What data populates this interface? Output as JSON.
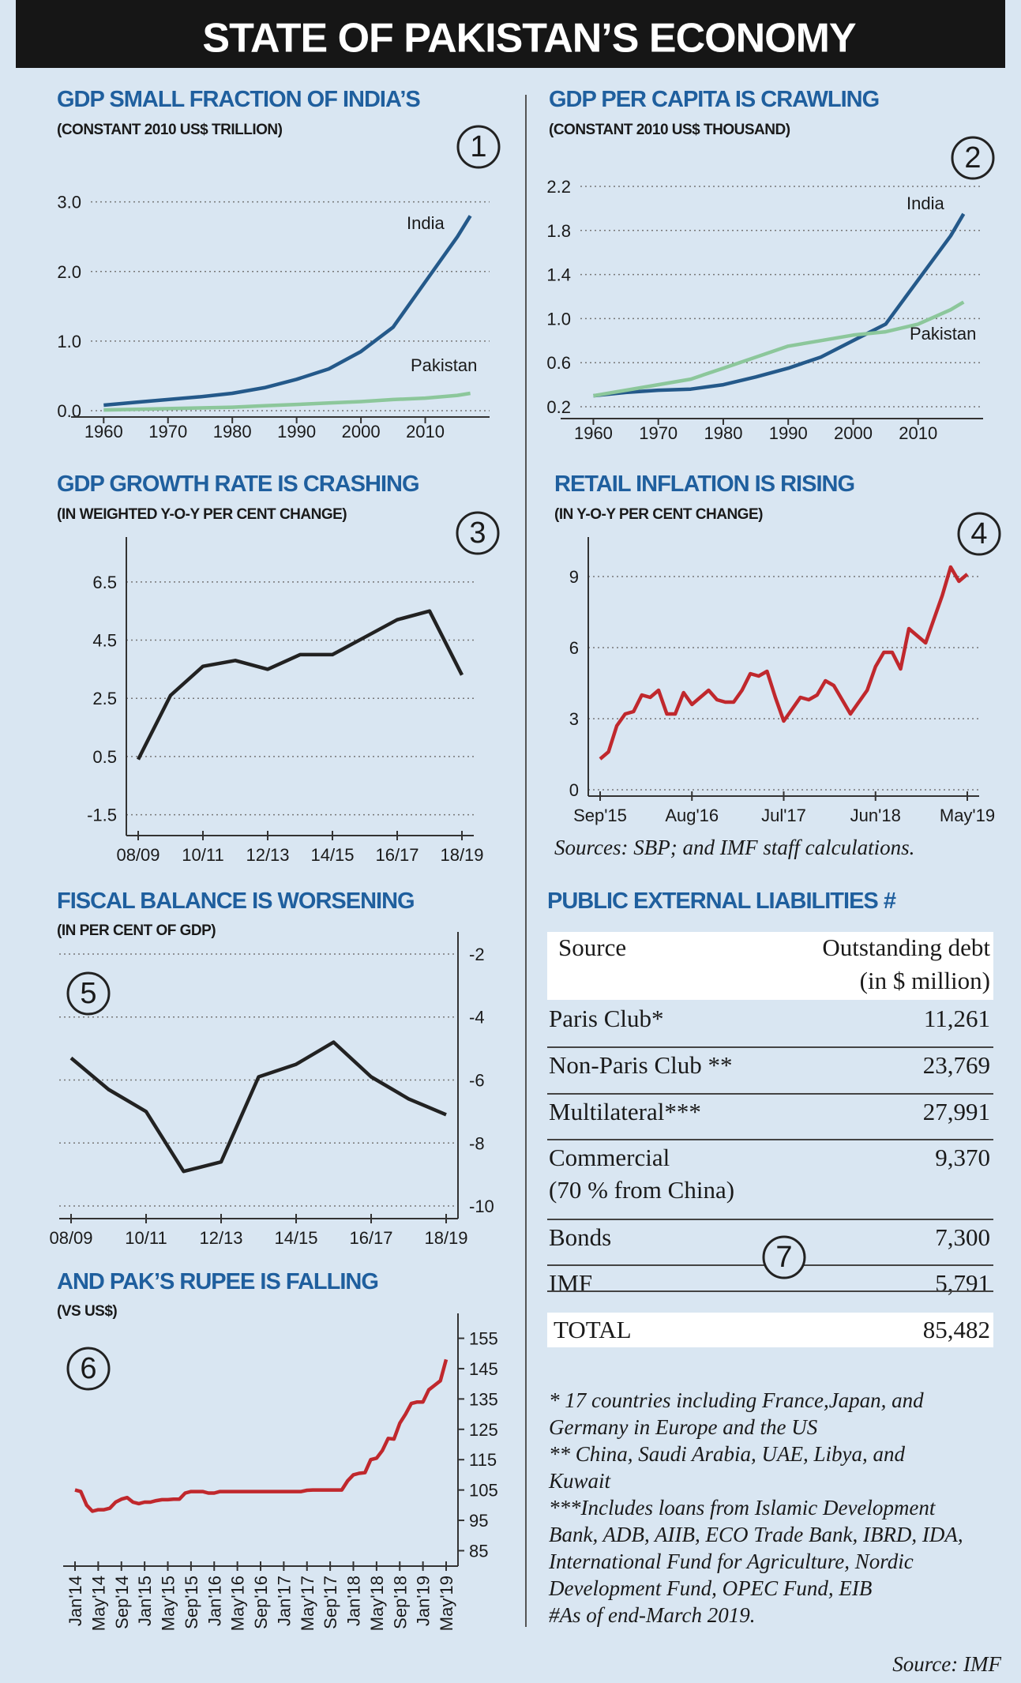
{
  "title": "STATE OF PAKISTAN’S ECONOMY",
  "chart_data": [
    {
      "type": "line",
      "title": "GDP SMALL FRACTION OF INDIA’S",
      "subtitle": "(CONSTANT 2010 US$ TRILLION)",
      "badge": "1",
      "x": [
        1960,
        1965,
        1970,
        1975,
        1980,
        1985,
        1990,
        1995,
        2000,
        2005,
        2010,
        2015,
        2017
      ],
      "series": [
        {
          "name": "India",
          "color": "#24598a",
          "values": [
            0.08,
            0.12,
            0.16,
            0.2,
            0.25,
            0.33,
            0.45,
            0.6,
            0.85,
            1.2,
            1.85,
            2.5,
            2.8
          ]
        },
        {
          "name": "Pakistan",
          "color": "#8cc79b",
          "values": [
            0.01,
            0.02,
            0.03,
            0.04,
            0.05,
            0.07,
            0.09,
            0.11,
            0.13,
            0.16,
            0.18,
            0.22,
            0.25
          ]
        }
      ],
      "xlim": [
        1958,
        2020
      ],
      "xticks": [
        1960,
        1970,
        1980,
        1990,
        2000,
        2010
      ],
      "ylim": [
        0,
        3.2
      ],
      "yticks": [
        {
          "value": 0,
          "label": "0.0"
        },
        {
          "value": 1,
          "label": "1.0"
        },
        {
          "value": 2,
          "label": "2.0"
        },
        {
          "value": 3,
          "label": "3.0"
        }
      ],
      "grid": true,
      "y_axis_side": "left"
    },
    {
      "type": "line",
      "title": "GDP PER CAPITA IS CRAWLING",
      "subtitle": "(CONSTANT 2010 US$ THOUSAND)",
      "badge": "2",
      "x": [
        1960,
        1965,
        1970,
        1975,
        1980,
        1985,
        1990,
        1995,
        2000,
        2005,
        2010,
        2015,
        2017
      ],
      "series": [
        {
          "name": "India",
          "color": "#24598a",
          "values": [
            0.3,
            0.33,
            0.35,
            0.36,
            0.4,
            0.47,
            0.55,
            0.65,
            0.8,
            0.95,
            1.35,
            1.75,
            1.95
          ]
        },
        {
          "name": "Pakistan",
          "color": "#8cc79b",
          "values": [
            0.3,
            0.35,
            0.4,
            0.45,
            0.55,
            0.65,
            0.75,
            0.8,
            0.85,
            0.88,
            0.95,
            1.08,
            1.15
          ]
        }
      ],
      "xlim": [
        1958,
        2020
      ],
      "xticks": [
        1960,
        1970,
        1980,
        1990,
        2000,
        2010
      ],
      "ylim": [
        0.15,
        2.3
      ],
      "yticks": [
        0.2,
        0.6,
        {
          "value": 1,
          "label": "1.0"
        },
        1.4,
        1.8,
        2.2
      ],
      "grid": true,
      "y_axis_side": "left"
    },
    {
      "type": "line",
      "title": "GDP GROWTH RATE IS CRASHING",
      "subtitle": "(IN WEIGHTED Y-O-Y PER CENT CHANGE)",
      "badge": "3",
      "categories": [
        "08/09",
        null,
        "10/11",
        null,
        "12/13",
        null,
        "14/15",
        null,
        "16/17",
        null,
        "18/19"
      ],
      "series": [
        {
          "color": "#222222",
          "values": [
            0.4,
            2.6,
            3.6,
            3.8,
            3.5,
            4.0,
            4.0,
            4.6,
            5.2,
            5.5,
            3.3
          ]
        }
      ],
      "ylim": [
        -2,
        7.5
      ],
      "yticks": [
        -1.5,
        0.5,
        2.5,
        4.5,
        6.5
      ],
      "grid": true,
      "y_axis_side": "left"
    },
    {
      "type": "line",
      "title": "RETAIL INFLATION IS RISING",
      "subtitle": "(IN Y-O-Y PER CENT CHANGE)",
      "badge": "4",
      "categories": [
        "Sep'15",
        null,
        null,
        null,
        null,
        null,
        null,
        null,
        null,
        null,
        null,
        "Aug'16",
        null,
        null,
        null,
        null,
        null,
        null,
        null,
        null,
        null,
        null,
        "Jul'17",
        null,
        null,
        null,
        null,
        null,
        null,
        null,
        null,
        null,
        null,
        "Jun'18",
        null,
        null,
        null,
        null,
        null,
        null,
        null,
        null,
        null,
        null,
        "May'19"
      ],
      "series": [
        {
          "color": "#c0282d",
          "values": [
            1.3,
            1.6,
            2.7,
            3.2,
            3.3,
            4.0,
            3.9,
            4.2,
            3.2,
            3.2,
            4.1,
            3.6,
            3.9,
            4.2,
            3.8,
            3.7,
            3.7,
            4.2,
            4.9,
            4.8,
            5.0,
            3.9,
            2.9,
            3.4,
            3.9,
            3.8,
            4.0,
            4.6,
            4.4,
            3.8,
            3.2,
            3.7,
            4.2,
            5.2,
            5.8,
            5.8,
            5.1,
            6.8,
            6.5,
            6.2,
            7.2,
            8.2,
            9.4,
            8.8,
            9.1
          ]
        }
      ],
      "ylim": [
        0,
        10
      ],
      "yticks": [
        0,
        3,
        6,
        9
      ],
      "grid": true,
      "y_axis_side": "left",
      "source": "Sources: SBP; and IMF staff calculations."
    },
    {
      "type": "line",
      "title": "FISCAL BALANCE IS WORSENING",
      "subtitle": "(IN PER CENT OF GDP)",
      "badge": "5",
      "categories": [
        "08/09",
        null,
        "10/11",
        null,
        "12/13",
        null,
        "14/15",
        null,
        "16/17",
        null,
        "18/19"
      ],
      "series": [
        {
          "color": "#222222",
          "values": [
            -5.3,
            -6.3,
            -7.0,
            -8.9,
            -8.6,
            -5.9,
            -5.5,
            -4.8,
            -5.9,
            -6.6,
            -7.1
          ]
        }
      ],
      "ylim": [
        -10.2,
        -1.8
      ],
      "yticks": [
        -2,
        -4,
        -6,
        -8,
        -10
      ],
      "grid": true,
      "y_axis_side": "right"
    },
    {
      "type": "line",
      "title": "AND PAK’S RUPEE IS FALLING",
      "subtitle": "(VS US$)",
      "badge": "6",
      "categories": [
        "Jan'14",
        null,
        null,
        null,
        "May'14",
        null,
        null,
        null,
        "Sep'14",
        null,
        null,
        null,
        "Jan'15",
        null,
        null,
        null,
        "May'15",
        null,
        null,
        null,
        "Sep'15",
        null,
        null,
        null,
        "Jan'16",
        null,
        null,
        null,
        "May'16",
        null,
        null,
        null,
        "Sep'16",
        null,
        null,
        null,
        "Jan'17",
        null,
        null,
        null,
        "May'17",
        null,
        null,
        null,
        "Sep'17",
        null,
        null,
        null,
        "Jan'18",
        null,
        null,
        null,
        "May'18",
        null,
        null,
        null,
        "Sep'18",
        null,
        null,
        null,
        "Jan'19",
        null,
        null,
        null,
        "May'19"
      ],
      "series": [
        {
          "color": "#c0282d",
          "values": [
            105,
            104.5,
            100,
            98,
            98.5,
            98.5,
            99,
            101,
            102,
            102.5,
            101,
            100.5,
            101,
            101,
            101.5,
            101.8,
            101.8,
            102,
            102,
            104,
            104.5,
            104.5,
            104.5,
            104,
            104,
            104.5,
            104.5,
            104.5,
            104.5,
            104.5,
            104.5,
            104.5,
            104.5,
            104.5,
            104.5,
            104.5,
            104.5,
            104.5,
            104.5,
            104.5,
            104.9,
            105,
            105,
            105,
            105,
            105,
            105,
            108,
            110,
            110.5,
            110.7,
            115,
            115.5,
            118,
            122,
            121.8,
            127,
            130,
            133.5,
            134,
            134,
            138,
            139.5,
            141,
            148
          ]
        }
      ],
      "ylim": [
        82,
        158
      ],
      "yticks": [
        85,
        95,
        105,
        115,
        125,
        135,
        145,
        155
      ],
      "grid": false,
      "y_axis_side": "right"
    }
  ],
  "table": {
    "title": "PUBLIC EXTERNAL LIABILITIES #",
    "badge": "7",
    "header": {
      "source": "Source",
      "debt": "Outstanding debt",
      "unit": "(in $ million)"
    },
    "rows": [
      {
        "name": "Paris Club*",
        "value": "11,261"
      },
      {
        "name": "Non-Paris Club **",
        "value": "23,769"
      },
      {
        "name": "Multilateral***",
        "value": "27,991"
      },
      {
        "name": "Commercial",
        "note": "(70 % from China)",
        "value": "9,370"
      },
      {
        "name": "Bonds",
        "value": "7,300"
      },
      {
        "name": "IMF",
        "value": "5,791"
      }
    ],
    "total": {
      "name": "TOTAL",
      "value": "85,482"
    }
  },
  "notes": [
    "* 17 countries including France,Japan, and",
    "Germany in Europe and the US",
    "** China, Saudi Arabia, UAE, Libya, and",
    "Kuwait",
    "***Includes loans from Islamic Development",
    "Bank, ADB, AIIB, ECO Trade Bank, IBRD, IDA,",
    "International Fund for Agriculture, Nordic",
    "Development Fund, OPEC Fund, EIB",
    "#As of end-March 2019."
  ],
  "source": "Source: IMF"
}
